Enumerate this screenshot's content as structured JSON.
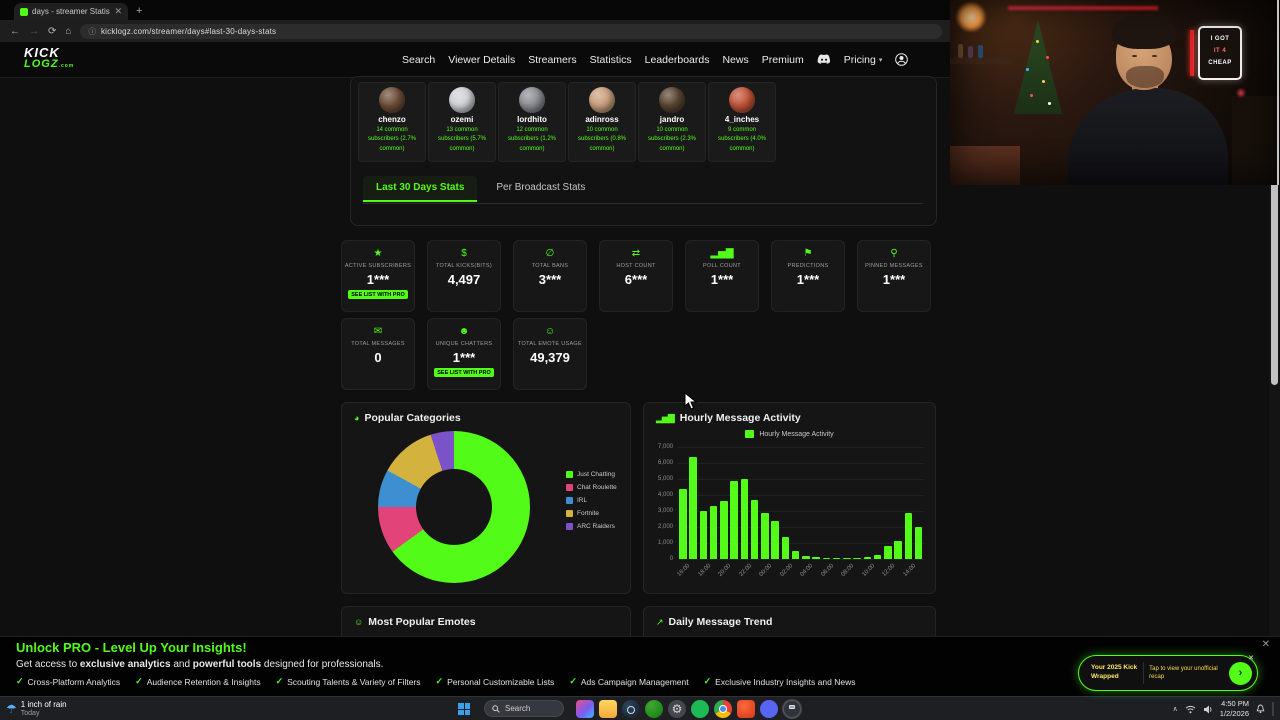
{
  "accent_color": "#53fc18",
  "browser": {
    "tab_title": "days - streamer Statistics",
    "url": "kicklogz.com/streamer/days#last-30-days-stats",
    "back_icon": "←",
    "forward_icon": "→",
    "refresh_icon": "⟳",
    "home_icon": "⌂",
    "info_icon": "ⓘ",
    "close_tab_icon": "✕",
    "new_tab_icon": "+"
  },
  "logo": {
    "line1": "KICK",
    "line2": "LOGZ",
    "suffix": ".com"
  },
  "nav": {
    "items": [
      {
        "type": "link",
        "label": "Search"
      },
      {
        "type": "link",
        "label": "Viewer Details"
      },
      {
        "type": "link",
        "label": "Streamers"
      },
      {
        "type": "link",
        "label": "Statistics"
      },
      {
        "type": "link",
        "label": "Leaderboards"
      },
      {
        "type": "link",
        "label": "News"
      },
      {
        "type": "link",
        "label": "Premium"
      },
      {
        "type": "icon",
        "icon": "discord"
      },
      {
        "type": "link",
        "label": "Pricing",
        "dropdown": true
      },
      {
        "type": "icon",
        "icon": "user"
      }
    ]
  },
  "similar_streamers": [
    {
      "name": "chenzo",
      "stat": "14 common subscribers (2.7% common)",
      "avatar_color": "#6e4f38"
    },
    {
      "name": "ozemi",
      "stat": "13 common subscribers (5.7% common)",
      "avatar_color": "#cfd2d6"
    },
    {
      "name": "lordhito",
      "stat": "12 common subscribers (1.2% common)",
      "avatar_color": "#8d8d95"
    },
    {
      "name": "adinross",
      "stat": "10 common subscribers (0.8% common)",
      "avatar_color": "#caa07e"
    },
    {
      "name": "jandro",
      "stat": "10 common subscribers (2.3% common)",
      "avatar_color": "#5a4632"
    },
    {
      "name": "4_inches",
      "stat": "9 common subscribers (4.0% common)",
      "avatar_color": "#c2563a"
    }
  ],
  "stat_tabs": [
    {
      "label": "Last 30 Days Stats",
      "active": true
    },
    {
      "label": "Per Broadcast Stats",
      "active": false
    }
  ],
  "stats": {
    "row1": [
      {
        "icon": "star",
        "glyph": "★",
        "label": "ACTIVE SUBSCRIBERS",
        "value": "1***",
        "badge": "SEE LIST WITH PRO"
      },
      {
        "icon": "money",
        "glyph": "$",
        "label": "TOTAL KICKS(BITS)",
        "value": "4,497"
      },
      {
        "icon": "ban",
        "glyph": "∅",
        "label": "TOTAL BANS",
        "value": "3***"
      },
      {
        "icon": "share",
        "glyph": "⇄",
        "label": "HOST COUNT",
        "value": "6***"
      },
      {
        "icon": "poll",
        "glyph": "▂▅▇",
        "label": "POLL COUNT",
        "value": "1***"
      },
      {
        "icon": "flag",
        "glyph": "⚑",
        "label": "PREDICTIONS",
        "value": "1***"
      },
      {
        "icon": "pin",
        "glyph": "⚲",
        "label": "PINNED MESSAGES",
        "value": "1***"
      }
    ],
    "row2": [
      {
        "icon": "message",
        "glyph": "✉",
        "label": "TOTAL MESSAGES",
        "value": "0"
      },
      {
        "icon": "users",
        "glyph": "☻",
        "label": "UNIQUE CHATTERS",
        "value": "1***",
        "badge": "SEE LIST WITH PRO"
      },
      {
        "icon": "smiley",
        "glyph": "☺",
        "label": "TOTAL EMOTE USAGE",
        "value": "49,379"
      }
    ]
  },
  "panels": {
    "categories_title": "Popular Categories",
    "categories_icon": "◕",
    "hourly_title": "Hourly Message Activity",
    "hourly_icon": "▂▅▇",
    "hourly_legend": "Hourly Message Activity",
    "emotes_title": "Most Popular Emotes",
    "emotes_icon": "☺",
    "daily_title": "Daily Message Trend",
    "daily_icon": "↗"
  },
  "chart_data": [
    {
      "type": "pie",
      "donut": true,
      "title": "Popular Categories",
      "labels": [
        "Just Chatting",
        "Chat Roulette",
        "IRL",
        "Fortnite",
        "ARC Raiders"
      ],
      "values": [
        65,
        10,
        8,
        12,
        5
      ],
      "unit": "percent-estimated-from-arc-angles",
      "colors": [
        "#53fc18",
        "#e2447a",
        "#3d8fd1",
        "#d3b33e",
        "#7c52c9"
      ],
      "legend_position": "right"
    },
    {
      "type": "bar",
      "title": "Hourly Message Activity",
      "legend": [
        "Hourly Message Activity"
      ],
      "categories": [
        "16:00",
        "17:00",
        "18:00",
        "19:00",
        "20:00",
        "21:00",
        "22:00",
        "23:00",
        "00:00",
        "01:00",
        "02:00",
        "03:00",
        "04:00",
        "05:00",
        "06:00",
        "07:00",
        "08:00",
        "09:00",
        "10:00",
        "11:00",
        "12:00",
        "13:00",
        "14:00",
        "15:00"
      ],
      "values": [
        4400,
        6400,
        3000,
        3300,
        3600,
        4900,
        5000,
        3700,
        2900,
        2400,
        1400,
        500,
        200,
        120,
        90,
        70,
        60,
        80,
        100,
        250,
        800,
        1100,
        2900,
        2000
      ],
      "ylim": [
        0,
        7000
      ],
      "yticks": [
        0,
        1000,
        2000,
        3000,
        4000,
        5000,
        6000,
        7000
      ],
      "bar_color": "#53fc18",
      "grid": true,
      "xlabel": "",
      "ylabel": ""
    }
  ],
  "pro_banner": {
    "title": "Unlock PRO - Level Up Your Insights!",
    "subtitle_parts": [
      "Get access to ",
      "exclusive analytics",
      " and ",
      "powerful tools",
      " designed for professionals."
    ],
    "features": [
      "Cross-Platform Analytics",
      "Audience Retention & Insights",
      "Scouting Talents & Variety of Filters",
      "Personal Customizable Lists",
      "Ads Campaign Management",
      "Exclusive Industry Insights and News"
    ],
    "check_glyph": "✓",
    "close_glyph": "✕"
  },
  "taskbar": {
    "weather_icon": "☂",
    "weather_line1": "1 inch of rain",
    "weather_line2": "Today",
    "search_label": "Search",
    "apps": [
      {
        "name": "photos"
      },
      {
        "name": "file-explorer"
      },
      {
        "name": "steam"
      },
      {
        "name": "xbox"
      },
      {
        "name": "settings",
        "glyph": "⚙"
      },
      {
        "name": "spotify"
      },
      {
        "name": "chrome"
      },
      {
        "name": "brave"
      },
      {
        "name": "discord"
      },
      {
        "name": "obs",
        "active": true
      }
    ],
    "tray_chevron": "∧",
    "clock_time": "4:50 PM",
    "clock_date": "1/2/2026"
  },
  "webcam": {
    "sign_line1": "I GOT",
    "sign_line2": "IT 4",
    "sign_line3": "CHEAP"
  },
  "toast": {
    "left_line1": "Your 2025 Kick",
    "left_line2": "Wrapped",
    "right_text": "Tap to view your unofficial recap",
    "cta_glyph": "›",
    "close_glyph": "✕"
  }
}
